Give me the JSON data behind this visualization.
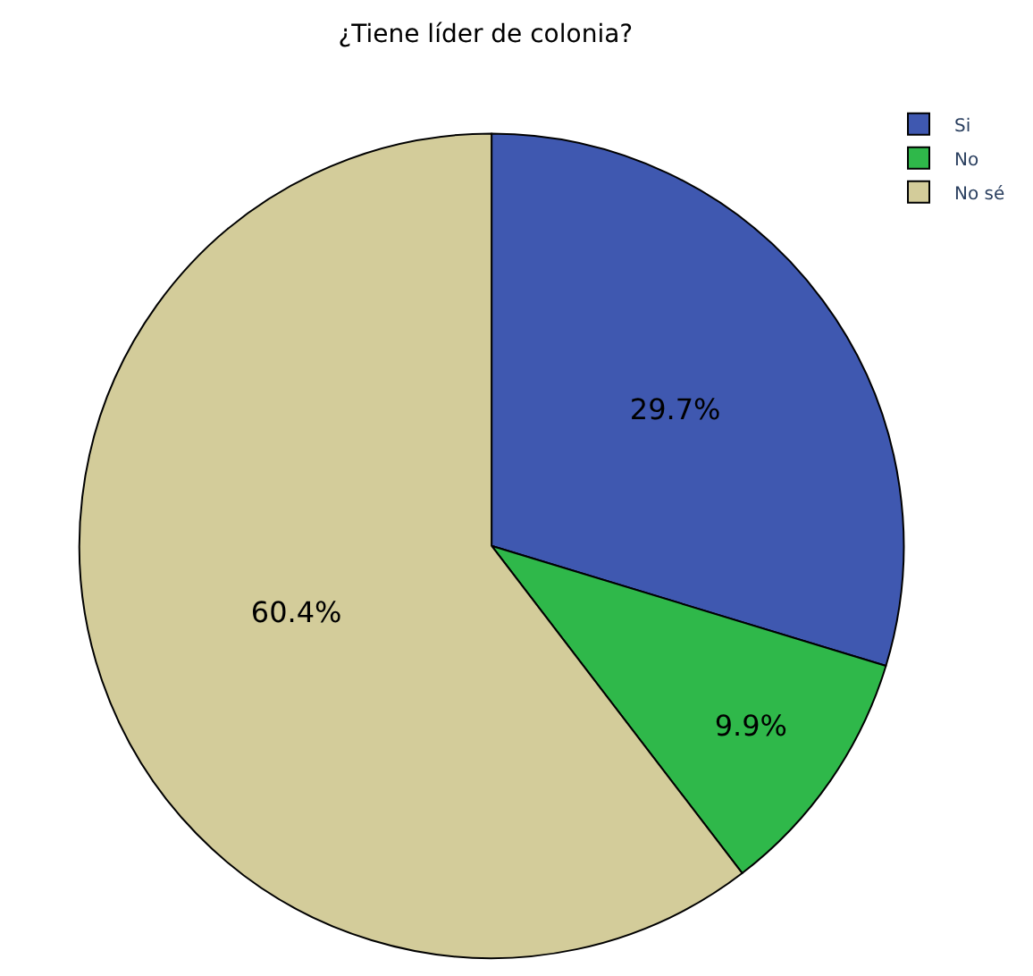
{
  "chart_data": {
    "type": "pie",
    "title": "¿Tiene líder de colonia?",
    "categories": [
      "Si",
      "No",
      "No sé"
    ],
    "values": [
      29.7,
      9.9,
      60.4
    ],
    "value_labels": [
      "29.7%",
      "9.9%",
      "60.4%"
    ],
    "colors": [
      "#3f58b0",
      "#2fb84a",
      "#d3cc9a"
    ],
    "legend": "top right"
  }
}
